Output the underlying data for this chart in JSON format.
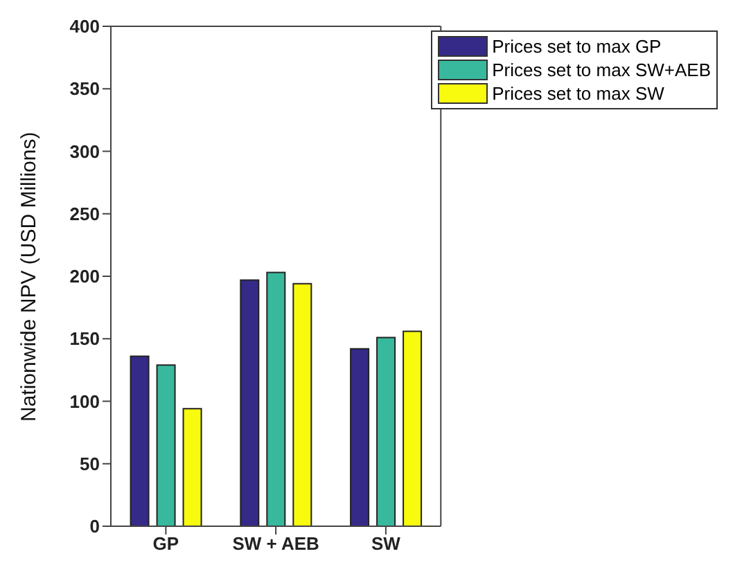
{
  "chart_data": {
    "type": "bar",
    "ylabel": "Nationwide NPV (USD Millions)",
    "categories": [
      "GP",
      "SW + AEB",
      "SW"
    ],
    "series": [
      {
        "name": "Prices set to max GP",
        "color": "#352a87",
        "values": [
          136,
          197,
          142
        ]
      },
      {
        "name": "Prices set to max SW+AEB",
        "color": "#38b99e",
        "values": [
          129,
          203,
          151
        ]
      },
      {
        "name": "Prices set to max SW",
        "color": "#f9fb0e",
        "values": [
          94,
          194,
          156
        ]
      }
    ],
    "ylim": [
      0,
      400
    ],
    "yticks": [
      0,
      50,
      100,
      150,
      200,
      250,
      300,
      350,
      400
    ],
    "grid": false,
    "legend": "top right"
  }
}
